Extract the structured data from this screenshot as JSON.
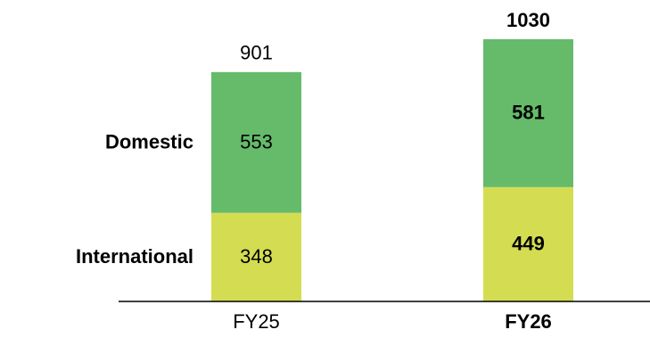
{
  "chart_data": {
    "type": "bar",
    "stacked": true,
    "categories": [
      "FY25",
      "FY26"
    ],
    "category_bold": [
      false,
      true
    ],
    "series": [
      {
        "name": "International",
        "values": [
          348,
          449
        ],
        "color": "#d4dd52"
      },
      {
        "name": "Domestic",
        "values": [
          553,
          581
        ],
        "color": "#65bb6a"
      }
    ],
    "totals": [
      901,
      1030
    ],
    "ylim": [
      0,
      1030
    ],
    "legend": "left",
    "grid": false,
    "axis_color": "#000000",
    "text_color": "#000000"
  }
}
